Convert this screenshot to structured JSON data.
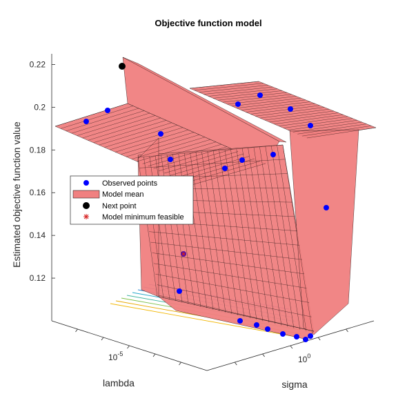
{
  "chart_data": {
    "type": "surface",
    "title": "Objective function model",
    "xlabel": "lambda",
    "ylabel": "sigma",
    "zlabel": "Estimated objective function value",
    "z_ticks": [
      {
        "value": 0.12,
        "label": "0.12"
      },
      {
        "value": 0.14,
        "label": "0.14"
      },
      {
        "value": 0.16,
        "label": "0.16"
      },
      {
        "value": 0.18,
        "label": "0.18"
      },
      {
        "value": 0.2,
        "label": "0.2"
      },
      {
        "value": 0.22,
        "label": "0.22"
      }
    ],
    "zlim": [
      0.1,
      0.225
    ],
    "lambda_ticks": [
      {
        "exp": "-5",
        "base": "10"
      }
    ],
    "sigma_ticks": [
      {
        "exp": "0",
        "base": "10"
      }
    ],
    "legend": {
      "position": "middle-left",
      "entries": [
        {
          "label": "Observed points",
          "marker": "dot",
          "color": "#0000ff"
        },
        {
          "label": "Model mean",
          "marker": "patch",
          "color": "#f08080"
        },
        {
          "label": "Next point",
          "marker": "dot",
          "color": "#000000"
        },
        {
          "label": "Model minimum feasible",
          "marker": "asterisk",
          "color": "#d62020"
        }
      ]
    },
    "surface": {
      "color": "#f08080",
      "edge_color": "#000000",
      "left_plateau_z": 0.196,
      "right_plateau_z": 0.196,
      "ridge_peak_z": 0.226,
      "valley_min_z": 0.103
    },
    "observed_points_z": [
      0.199,
      0.204,
      0.193,
      0.18,
      0.176,
      0.18,
      0.182,
      0.207,
      0.212,
      0.205,
      0.197,
      0.156,
      0.133,
      0.115,
      0.102,
      0.101,
      0.101,
      0.1,
      0.1,
      0.1,
      0.1
    ],
    "next_point_z": 0.226,
    "model_minimum_feasible_z": 0.133
  }
}
